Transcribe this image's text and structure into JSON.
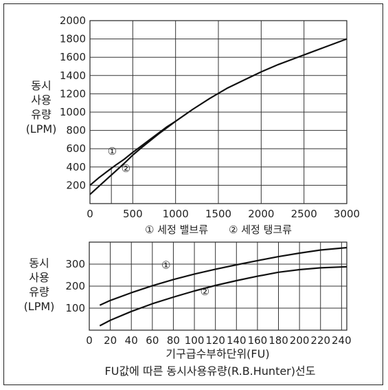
{
  "chart_data": [
    {
      "type": "line",
      "ylabel_lines": [
        "동시",
        "사용",
        "유량",
        "(LPM)"
      ],
      "xlabel": "",
      "xlim": [
        0,
        3000
      ],
      "ylim": [
        0,
        2000
      ],
      "x_ticks": [
        0,
        500,
        1000,
        1500,
        2000,
        2500,
        3000
      ],
      "y_ticks": [
        200,
        400,
        600,
        800,
        1000,
        1200,
        1400,
        1600,
        1800,
        2000
      ],
      "x_tick_labels": [
        "0",
        "500",
        "1000",
        "1500",
        "2000",
        "2500",
        "3000"
      ],
      "y_tick_labels": [
        "200",
        "400",
        "600",
        "800",
        "1000",
        "1200",
        "1400",
        "1600",
        "1800",
        "2000"
      ],
      "grid": true,
      "legend_text": "① 세정 밸브류　　② 세정 탱크류",
      "series": [
        {
          "name": "①",
          "points": [
            [
              0,
              200
            ],
            [
              100,
              280
            ],
            [
              200,
              350
            ],
            [
              300,
              420
            ],
            [
              400,
              485
            ],
            [
              500,
              560
            ],
            [
              600,
              630
            ],
            [
              700,
              700
            ],
            [
              800,
              770
            ],
            [
              900,
              840
            ],
            [
              1000,
              900
            ]
          ]
        },
        {
          "name": "②",
          "points": [
            [
              0,
              100
            ],
            [
              200,
              270
            ],
            [
              400,
              440
            ],
            [
              500,
              530
            ],
            [
              600,
              610
            ],
            [
              800,
              760
            ],
            [
              1000,
              900
            ],
            [
              1200,
              1030
            ],
            [
              1400,
              1150
            ],
            [
              1600,
              1260
            ],
            [
              1800,
              1350
            ],
            [
              2000,
              1440
            ],
            [
              2200,
              1520
            ],
            [
              2400,
              1590
            ],
            [
              2600,
              1660
            ],
            [
              2800,
              1730
            ],
            [
              3000,
              1800
            ]
          ]
        }
      ],
      "series_labels": [
        {
          "text": "①",
          "x": 260,
          "y": 535
        },
        {
          "text": "②",
          "x": 420,
          "y": 345
        }
      ]
    },
    {
      "type": "line",
      "ylabel_lines": [
        "동시",
        "사용",
        "유량",
        "(LPM)"
      ],
      "xlabel": "기구급수부하단위(FU)",
      "xlim": [
        0,
        245
      ],
      "ylim": [
        0,
        400
      ],
      "x_ticks": [
        0,
        20,
        40,
        60,
        80,
        100,
        120,
        140,
        160,
        180,
        200,
        220,
        240
      ],
      "y_ticks": [
        100,
        200,
        300
      ],
      "x_tick_labels": [
        "0",
        "20",
        "40",
        "60",
        "80",
        "100",
        "120",
        "140",
        "160",
        "180",
        "200",
        "220",
        "240"
      ],
      "y_tick_labels": [
        "100",
        "200",
        "300"
      ],
      "grid": true,
      "series": [
        {
          "name": "①",
          "points": [
            [
              10,
              113
            ],
            [
              20,
              135
            ],
            [
              40,
              170
            ],
            [
              60,
              202
            ],
            [
              80,
              230
            ],
            [
              100,
              255
            ],
            [
              120,
              277
            ],
            [
              140,
              297
            ],
            [
              160,
              316
            ],
            [
              180,
              334
            ],
            [
              200,
              350
            ],
            [
              220,
              364
            ],
            [
              245,
              375
            ]
          ]
        },
        {
          "name": "②",
          "points": [
            [
              10,
              20
            ],
            [
              20,
              45
            ],
            [
              40,
              85
            ],
            [
              60,
              120
            ],
            [
              80,
              150
            ],
            [
              100,
              178
            ],
            [
              120,
              203
            ],
            [
              140,
              225
            ],
            [
              160,
              245
            ],
            [
              180,
              263
            ],
            [
              200,
              275
            ],
            [
              220,
              283
            ],
            [
              245,
              288
            ]
          ]
        }
      ],
      "series_labels": [
        {
          "text": "①",
          "x": 73,
          "y": 280
        },
        {
          "text": "②",
          "x": 110,
          "y": 160
        }
      ]
    }
  ],
  "caption": "FU값에 따른 동시사용유량(R.B.Hunter)선도"
}
